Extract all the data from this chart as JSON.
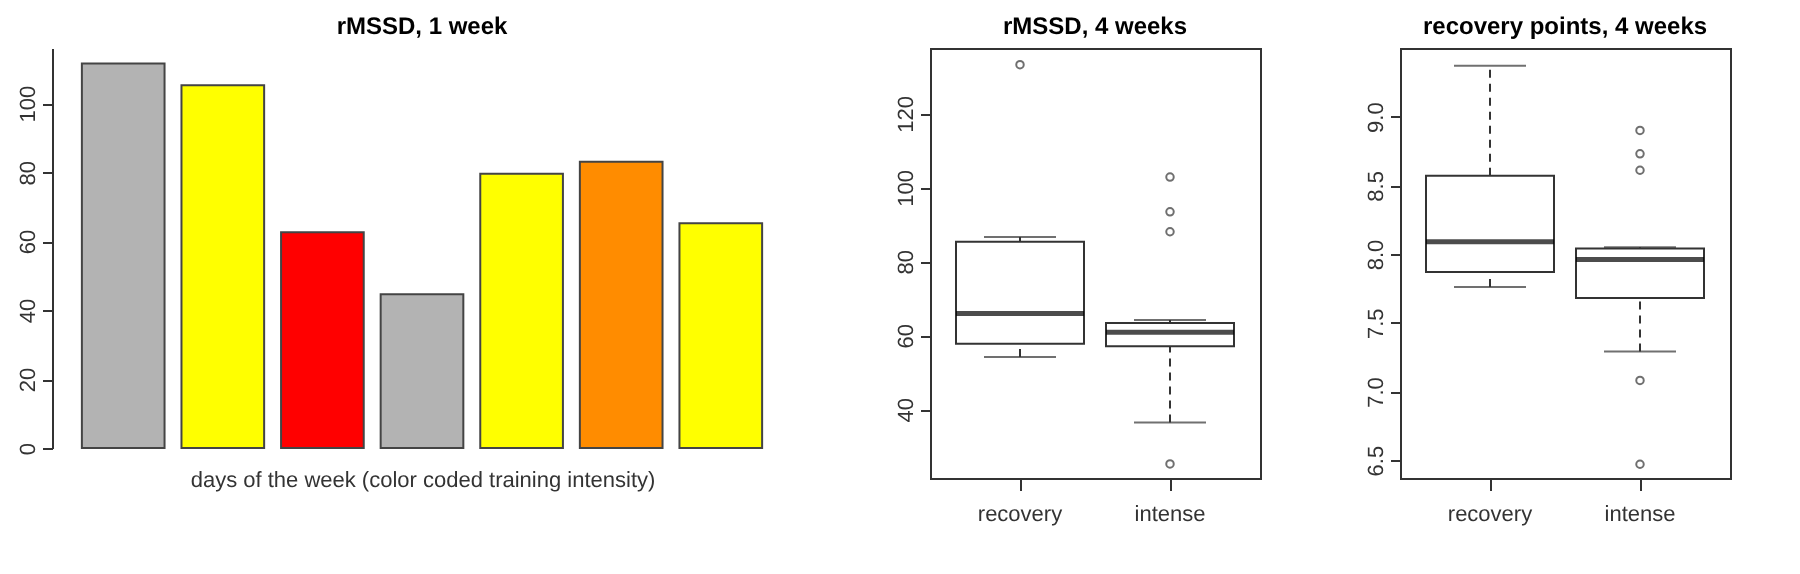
{
  "chart_data": [
    {
      "type": "bar",
      "title": "rMSSD, 1 week",
      "xlabel": "days of the week (color coded training intensity)",
      "categories": [
        null,
        null,
        null,
        null,
        null,
        null,
        null
      ],
      "values": [
        111.5,
        105.2,
        62.6,
        44.6,
        79.5,
        83,
        65.2
      ],
      "colors": [
        "#b3b3b3",
        "#ffff00",
        "#ff0000",
        "#b3b3b3",
        "#ffff00",
        "#ff8c00",
        "#ffff00"
      ],
      "ylim": [
        0,
        116
      ],
      "yticks": [
        0,
        20,
        40,
        60,
        80,
        100
      ]
    },
    {
      "type": "box",
      "title": "rMSSD, 4 weeks",
      "categories": [
        "recovery",
        "intense"
      ],
      "boxes": [
        {
          "low": 54.1,
          "q1": 57.7,
          "median": 65.9,
          "q3": 85.3,
          "high": 86.6,
          "outliers": [
            133.2
          ]
        },
        {
          "low": 36.4,
          "q1": 57.0,
          "median": 60.8,
          "q3": 63.3,
          "high": 64.1,
          "outliers": [
            102.8,
            93.4,
            88.0,
            25.2
          ]
        }
      ],
      "ylim": [
        21.4,
        137.7
      ],
      "yticks": [
        40,
        60,
        80,
        100,
        120
      ]
    },
    {
      "type": "box",
      "title": "recovery points, 4 weeks",
      "categories": [
        "recovery",
        "intense"
      ],
      "boxes": [
        {
          "low": 7.76,
          "q1": 7.87,
          "median": 8.09,
          "q3": 8.57,
          "high": 9.37
        },
        {
          "low": 7.29,
          "q1": 7.68,
          "median": 7.96,
          "q3": 8.04,
          "high": 8.05,
          "outliers": [
            8.9,
            8.73,
            8.61,
            7.08,
            6.47
          ]
        }
      ],
      "ylim": [
        6.37,
        9.5
      ],
      "yticks": [
        {
          "value": 6.5,
          "label": "6.5"
        },
        {
          "value": 7,
          "label": "7.0"
        },
        {
          "value": 7.5,
          "label": "7.5"
        },
        {
          "value": 8,
          "label": "8.0"
        },
        {
          "value": 8.5,
          "label": "8.5"
        },
        {
          "value": 9,
          "label": "9.0"
        }
      ]
    }
  ]
}
